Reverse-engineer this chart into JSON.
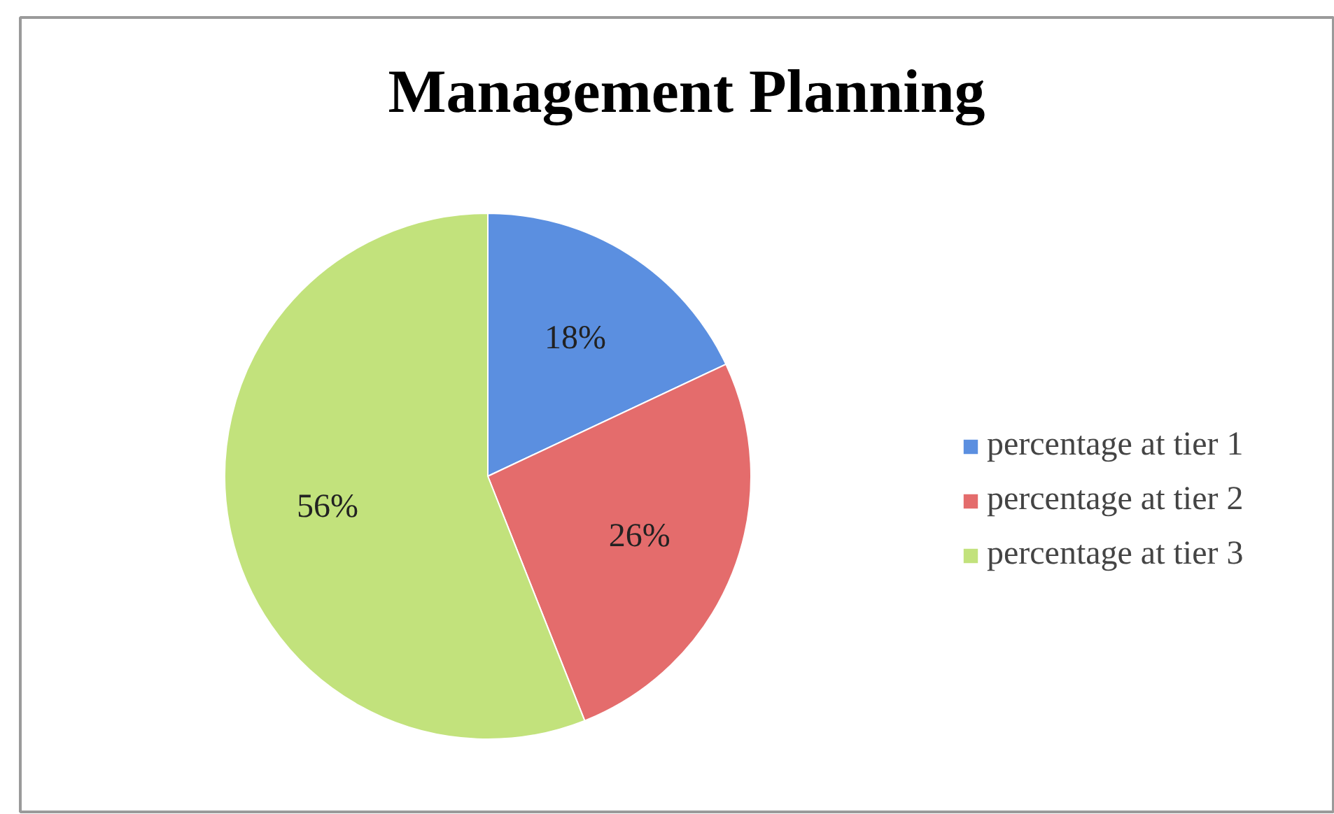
{
  "chart_data": {
    "type": "pie",
    "title": "Management Planning",
    "categories": [
      "percentage at tier 1",
      "percentage at tier 2",
      "percentage at tier 3"
    ],
    "values": [
      18,
      26,
      56
    ],
    "colors": [
      "#5b8fe0",
      "#e46c6c",
      "#c2e27c"
    ],
    "value_labels": [
      "18%",
      "26%",
      "56%"
    ],
    "legend": "right"
  }
}
